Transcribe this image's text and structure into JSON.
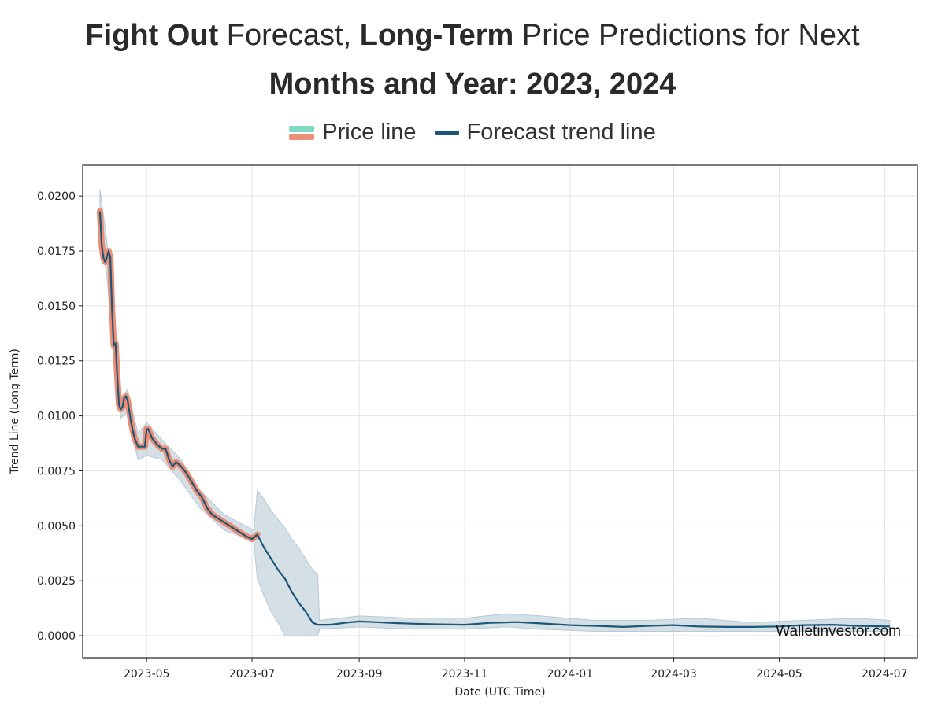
{
  "header": {
    "title_part1": "Fight Out",
    "title_part2": " Forecast, ",
    "title_part3": "Long-Term",
    "title_part4": " Price Predictions for Next",
    "title_line2": "Months and Year: 2023, 2024"
  },
  "colors": {
    "price_top": "#7fd8c0",
    "price_line": "#ec8e76",
    "forecast_line": "#1a5779",
    "band": "#b7cad6",
    "grid": "#e3e3e3"
  },
  "chart_data": {
    "type": "line",
    "title": "Fight Out Forecast, Long-Term Price Predictions for Next Months and Year: 2023, 2024",
    "xlabel": "Date (UTC Time)",
    "ylabel": "Trend Line (Long Term)",
    "ylim": [
      -0.001,
      0.0214
    ],
    "xlim": [
      "2023-03-25",
      "2024-07-20"
    ],
    "grid": true,
    "legend": {
      "placement": "top-center",
      "entries": [
        "Price line",
        "Forecast trend line"
      ]
    },
    "yticks": [
      "0.0000",
      "0.0025",
      "0.0050",
      "0.0075",
      "0.0100",
      "0.0125",
      "0.0150",
      "0.0175",
      "0.0200"
    ],
    "ytick_values": [
      0,
      0.0025,
      0.005,
      0.0075,
      0.01,
      0.0125,
      0.015,
      0.0175,
      0.02
    ],
    "xticks": [
      "2023-05",
      "2023-07",
      "2023-09",
      "2023-11",
      "2024-01",
      "2024-03",
      "2024-05",
      "2024-07"
    ],
    "xtick_dates": [
      "2023-05-01",
      "2023-07-01",
      "2023-09-01",
      "2023-11-01",
      "2024-01-01",
      "2024-03-01",
      "2024-05-01",
      "2024-07-01"
    ],
    "watermark": "Walletinvestor.com",
    "series": [
      {
        "name": "Price line",
        "x": [
          "2023-04-04",
          "2023-04-05",
          "2023-04-06",
          "2023-04-07",
          "2023-04-08",
          "2023-04-09",
          "2023-04-10",
          "2023-04-11",
          "2023-04-12",
          "2023-04-13",
          "2023-04-14",
          "2023-04-15",
          "2023-04-16",
          "2023-04-17",
          "2023-04-18",
          "2023-04-19",
          "2023-04-20",
          "2023-04-21",
          "2023-04-22",
          "2023-04-24",
          "2023-04-26",
          "2023-04-28",
          "2023-04-30",
          "2023-05-01",
          "2023-05-02",
          "2023-05-04",
          "2023-05-07",
          "2023-05-10",
          "2023-05-12",
          "2023-05-14",
          "2023-05-16",
          "2023-05-18",
          "2023-05-21",
          "2023-05-24",
          "2023-05-27",
          "2023-05-30",
          "2023-06-02",
          "2023-06-05",
          "2023-06-08",
          "2023-06-12",
          "2023-06-16",
          "2023-06-20",
          "2023-06-24",
          "2023-06-28",
          "2023-07-01",
          "2023-07-04"
        ],
        "values": [
          0.0193,
          0.0178,
          0.0172,
          0.017,
          0.0172,
          0.0175,
          0.0172,
          0.0148,
          0.0132,
          0.0133,
          0.0118,
          0.0105,
          0.0103,
          0.0104,
          0.0108,
          0.0109,
          0.0107,
          0.0102,
          0.0097,
          0.009,
          0.0086,
          0.0086,
          0.0086,
          0.0094,
          0.0094,
          0.009,
          0.0087,
          0.0085,
          0.0085,
          0.008,
          0.0077,
          0.0079,
          0.0077,
          0.0074,
          0.007,
          0.0066,
          0.0063,
          0.0058,
          0.0055,
          0.0053,
          0.0051,
          0.0049,
          0.0047,
          0.0045,
          0.0044,
          0.0046
        ]
      },
      {
        "name": "Forecast trend line",
        "x": [
          "2023-04-04",
          "2023-04-05",
          "2023-04-06",
          "2023-04-07",
          "2023-04-08",
          "2023-04-09",
          "2023-04-10",
          "2023-04-11",
          "2023-04-12",
          "2023-04-13",
          "2023-04-14",
          "2023-04-15",
          "2023-04-16",
          "2023-04-17",
          "2023-04-18",
          "2023-04-19",
          "2023-04-20",
          "2023-04-21",
          "2023-04-22",
          "2023-04-24",
          "2023-04-26",
          "2023-04-28",
          "2023-04-30",
          "2023-05-01",
          "2023-05-02",
          "2023-05-04",
          "2023-05-07",
          "2023-05-10",
          "2023-05-12",
          "2023-05-14",
          "2023-05-16",
          "2023-05-18",
          "2023-05-21",
          "2023-05-24",
          "2023-05-27",
          "2023-05-30",
          "2023-06-02",
          "2023-06-05",
          "2023-06-08",
          "2023-06-12",
          "2023-06-16",
          "2023-06-20",
          "2023-06-24",
          "2023-06-28",
          "2023-07-01",
          "2023-07-04",
          "2023-07-08",
          "2023-07-12",
          "2023-07-16",
          "2023-07-20",
          "2023-07-24",
          "2023-07-28",
          "2023-08-01",
          "2023-08-05",
          "2023-08-08",
          "2023-08-09",
          "2023-08-15",
          "2023-08-25",
          "2023-09-01",
          "2023-09-10",
          "2023-09-20",
          "2023-10-01",
          "2023-10-15",
          "2023-11-01",
          "2023-11-15",
          "2023-12-01",
          "2023-12-15",
          "2024-01-01",
          "2024-01-15",
          "2024-02-01",
          "2024-02-15",
          "2024-03-01",
          "2024-03-15",
          "2024-04-01",
          "2024-04-15",
          "2024-05-01",
          "2024-05-15",
          "2024-06-01",
          "2024-06-15",
          "2024-07-04"
        ],
        "values": [
          0.0193,
          0.0178,
          0.0172,
          0.017,
          0.0172,
          0.0175,
          0.0172,
          0.0148,
          0.0132,
          0.0133,
          0.0118,
          0.0105,
          0.0103,
          0.0104,
          0.0108,
          0.0109,
          0.0107,
          0.0102,
          0.0097,
          0.009,
          0.0086,
          0.0086,
          0.0086,
          0.0094,
          0.0094,
          0.009,
          0.0087,
          0.0085,
          0.0085,
          0.008,
          0.0077,
          0.0079,
          0.0077,
          0.0074,
          0.007,
          0.0066,
          0.0063,
          0.0058,
          0.0055,
          0.0053,
          0.0051,
          0.0049,
          0.0047,
          0.0045,
          0.0044,
          0.0046,
          0.004,
          0.0035,
          0.003,
          0.0026,
          0.002,
          0.0015,
          0.0011,
          0.0006,
          0.0005,
          0.0005,
          0.0005,
          0.0006,
          0.00065,
          0.00062,
          0.00058,
          0.00055,
          0.00052,
          0.0005,
          0.00058,
          0.00062,
          0.00056,
          0.00048,
          0.00045,
          0.0004,
          0.00045,
          0.00048,
          0.00042,
          0.0004,
          0.0004,
          0.00042,
          0.00048,
          0.0005,
          0.00045,
          0.00042
        ]
      },
      {
        "name": "Forecast band",
        "x": [
          "2023-04-04",
          "2023-04-08",
          "2023-04-12",
          "2023-04-16",
          "2023-04-20",
          "2023-04-26",
          "2023-05-01",
          "2023-05-10",
          "2023-05-20",
          "2023-06-01",
          "2023-06-15",
          "2023-07-02",
          "2023-07-04",
          "2023-07-08",
          "2023-07-12",
          "2023-07-16",
          "2023-07-20",
          "2023-07-24",
          "2023-07-28",
          "2023-08-01",
          "2023-08-05",
          "2023-08-08",
          "2023-08-09",
          "2023-09-01",
          "2023-10-01",
          "2023-11-01",
          "2023-11-25",
          "2023-12-15",
          "2024-01-15",
          "2024-02-15",
          "2024-03-15",
          "2024-04-15",
          "2024-05-15",
          "2024-06-15",
          "2024-07-04"
        ],
        "upper": [
          0.0203,
          0.018,
          0.0138,
          0.0108,
          0.0112,
          0.0092,
          0.0097,
          0.0089,
          0.0081,
          0.0066,
          0.0055,
          0.0048,
          0.0066,
          0.0062,
          0.0057,
          0.0053,
          0.0049,
          0.0044,
          0.004,
          0.0035,
          0.003,
          0.0028,
          0.0007,
          0.0009,
          0.0008,
          0.0008,
          0.001,
          0.0009,
          0.0007,
          0.0007,
          0.0008,
          0.0006,
          0.0007,
          0.0008,
          0.0007
        ],
        "lower": [
          0.0183,
          0.0164,
          0.0125,
          0.0099,
          0.0102,
          0.008,
          0.0082,
          0.008,
          0.0071,
          0.0058,
          0.0048,
          0.0043,
          0.0026,
          0.0018,
          0.0011,
          0.0006,
          0.0,
          0.0,
          0.0,
          0.0,
          0.0,
          0.0,
          0.0003,
          0.0004,
          0.0003,
          0.0003,
          0.0004,
          0.0003,
          0.0002,
          0.0002,
          0.0002,
          0.0002,
          0.0002,
          0.0002,
          0.0002
        ]
      }
    ]
  }
}
